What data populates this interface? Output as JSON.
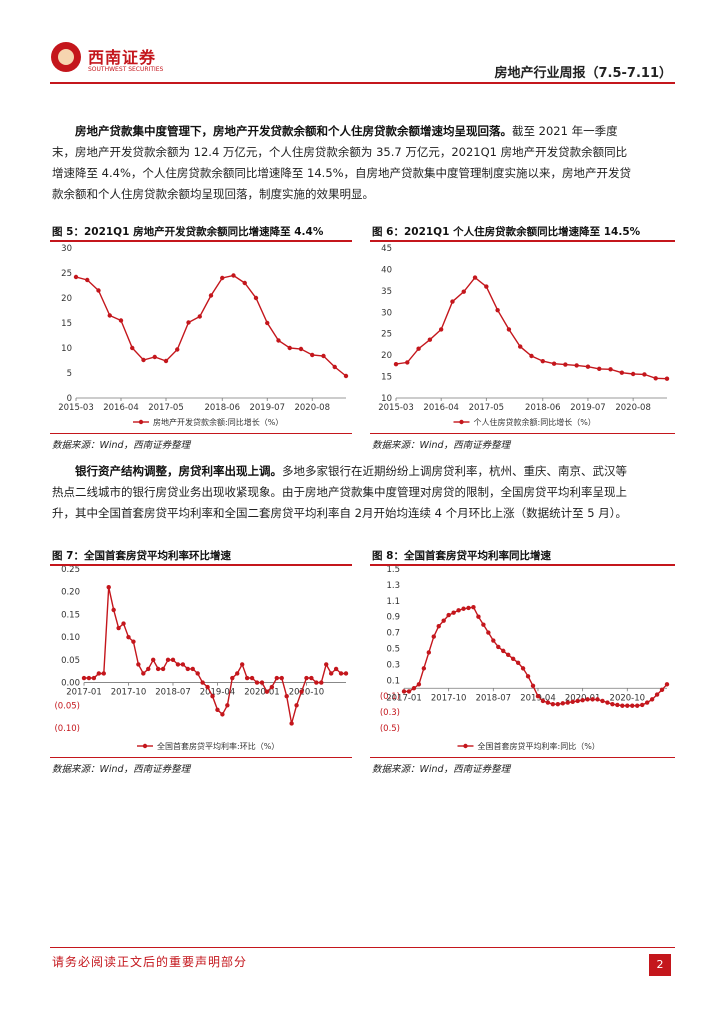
{
  "header": {
    "logo_text": "西南证券",
    "logo_subtext": "SOUTHWEST SECURITIES",
    "report_title": "房地产行业周报（7.5-7.11）"
  },
  "section1": {
    "heading": "房地产贷款集中度管理下，房地产开发贷款余额和个人住房贷款余额增速均呈现回落。",
    "body": "截至 2021 年一季度末，房地产开发贷款余额为 12.4 万亿元，个人住房贷款余额为 35.7 万亿元，2021Q1 房地产开发贷款余额同比增速降至 4.4%，个人住房贷款余额同比增速降至 14.5%，自房地产贷款集中度管理制度实施以来，房地产开发贷款余额和个人住房贷款余额均呈现回落，制度实施的效果明显。"
  },
  "section2": {
    "heading": "银行资产结构调整，房贷利率出现上调。",
    "body": "多地多家银行在近期纷纷上调房贷利率，杭州、重庆、南京、武汉等热点二线城市的银行房贷业务出现收紧现象。由于房地产贷款集中度管理对房贷的限制，全国房贷平均利率呈现上升，其中全国首套房贷平均利率和全国二套房贷平均利率自 2月开始均连续 4 个月环比上涨（数据统计至 5 月）。"
  },
  "source_text": "数据来源：Wind，西南证券整理",
  "footer": {
    "disclaimer": "请务必阅读正文后的重要声明部分",
    "page_number": "2"
  },
  "chart_data": [
    {
      "id": "fig5",
      "type": "line",
      "title": "图 5：2021Q1 房地产开发贷款余额同比增速降至 4.4%",
      "legend": "房地产开发贷款余额:同比增长（%）",
      "ylim": [
        0,
        30
      ],
      "yticks": [
        0,
        5,
        10,
        15,
        20,
        25,
        30
      ],
      "ytick_labels": [
        "0",
        "5",
        "10",
        "15",
        "20",
        "25",
        "30"
      ],
      "xlim": [
        0,
        24
      ],
      "xticks": [
        0,
        4,
        8,
        13,
        17,
        21
      ],
      "xtick_labels": [
        "2015-03",
        "2016-04",
        "2017-05",
        "2018-06",
        "2019-07",
        "2020-08"
      ],
      "values": [
        24.2,
        23.6,
        21.5,
        16.5,
        15.5,
        10.0,
        7.6,
        8.2,
        7.4,
        9.7,
        15.1,
        16.3,
        20.5,
        24.0,
        24.5,
        23.0,
        20.0,
        15.0,
        11.5,
        10.0,
        9.8,
        8.6,
        8.4,
        6.2,
        4.4
      ],
      "color": "#c4161c"
    },
    {
      "id": "fig6",
      "type": "line",
      "title": "图 6：2021Q1 个人住房贷款余额同比增速降至 14.5%",
      "legend": "个人住房贷款余额:同比增长（%）",
      "ylim": [
        10,
        45
      ],
      "yticks": [
        10,
        15,
        20,
        25,
        30,
        35,
        40,
        45
      ],
      "ytick_labels": [
        "10",
        "15",
        "20",
        "25",
        "30",
        "35",
        "40",
        "45"
      ],
      "xlim": [
        0,
        24
      ],
      "xticks": [
        0,
        4,
        8,
        13,
        17,
        21
      ],
      "xtick_labels": [
        "2015-03",
        "2016-04",
        "2017-05",
        "2018-06",
        "2019-07",
        "2020-08"
      ],
      "values": [
        17.9,
        18.3,
        21.5,
        23.6,
        26.0,
        32.5,
        34.8,
        38.1,
        36.0,
        30.5,
        26.0,
        22.0,
        19.8,
        18.6,
        18.0,
        17.8,
        17.6,
        17.3,
        16.8,
        16.7,
        15.9,
        15.6,
        15.5,
        14.6,
        14.5
      ],
      "color": "#c4161c"
    },
    {
      "id": "fig7",
      "type": "line",
      "title": "图 7：全国首套房贷平均利率环比增速",
      "legend": "全国首套房贷平均利率:环比（%）",
      "ylim": [
        -0.1,
        0.25
      ],
      "yticks": [
        -0.1,
        -0.05,
        0.0,
        0.05,
        0.1,
        0.15,
        0.2,
        0.25
      ],
      "ytick_labels": [
        "(0.10)",
        "(0.05)",
        "0.00",
        "0.05",
        "0.10",
        "0.15",
        "0.20",
        "0.25"
      ],
      "xlim": [
        0,
        53
      ],
      "xticks": [
        0,
        9,
        18,
        27,
        36,
        45
      ],
      "xtick_labels": [
        "2017-01",
        "2017-10",
        "2018-07",
        "2019-04",
        "2020-01",
        "2020-10"
      ],
      "values": [
        0.01,
        0.01,
        0.01,
        0.02,
        0.02,
        0.21,
        0.16,
        0.12,
        0.13,
        0.1,
        0.09,
        0.04,
        0.02,
        0.03,
        0.05,
        0.03,
        0.03,
        0.05,
        0.05,
        0.04,
        0.04,
        0.03,
        0.03,
        0.02,
        0.0,
        -0.01,
        -0.03,
        -0.06,
        -0.07,
        -0.05,
        0.01,
        0.02,
        0.04,
        0.01,
        0.01,
        0.0,
        0.0,
        -0.02,
        -0.01,
        0.01,
        0.01,
        -0.03,
        -0.09,
        -0.05,
        -0.02,
        0.01,
        0.01,
        0.0,
        0.0,
        0.04,
        0.02,
        0.03,
        0.02,
        0.02
      ],
      "color": "#c4161c"
    },
    {
      "id": "fig8",
      "type": "line",
      "title": "图 8：全国首套房贷平均利率同比增速",
      "legend": "全国首套房贷平均利率:同比（%）",
      "ylim": [
        -0.5,
        1.5
      ],
      "yticks": [
        -0.5,
        -0.3,
        -0.1,
        0.1,
        0.3,
        0.5,
        0.7,
        0.9,
        1.1,
        1.3,
        1.5
      ],
      "ytick_labels": [
        "(0.5)",
        "(0.3)",
        "(0.1)",
        "0.1",
        "0.3",
        "0.5",
        "0.7",
        "0.9",
        "1.1",
        "1.3",
        "1.5"
      ],
      "xlim": [
        0,
        53
      ],
      "xticks": [
        0,
        9,
        18,
        27,
        36,
        45
      ],
      "xtick_labels": [
        "2017-01",
        "2017-10",
        "2018-07",
        "2019-04",
        "2020-01",
        "2020-10"
      ],
      "values": [
        -0.04,
        -0.04,
        0.0,
        0.05,
        0.25,
        0.45,
        0.65,
        0.78,
        0.85,
        0.92,
        0.95,
        0.98,
        1.0,
        1.01,
        1.02,
        0.9,
        0.8,
        0.7,
        0.6,
        0.52,
        0.47,
        0.42,
        0.37,
        0.32,
        0.25,
        0.15,
        0.03,
        -0.1,
        -0.16,
        -0.18,
        -0.2,
        -0.2,
        -0.19,
        -0.18,
        -0.17,
        -0.16,
        -0.15,
        -0.14,
        -0.14,
        -0.14,
        -0.16,
        -0.18,
        -0.2,
        -0.21,
        -0.22,
        -0.22,
        -0.22,
        -0.22,
        -0.21,
        -0.18,
        -0.14,
        -0.08,
        -0.02,
        0.05
      ],
      "color": "#c4161c"
    }
  ]
}
